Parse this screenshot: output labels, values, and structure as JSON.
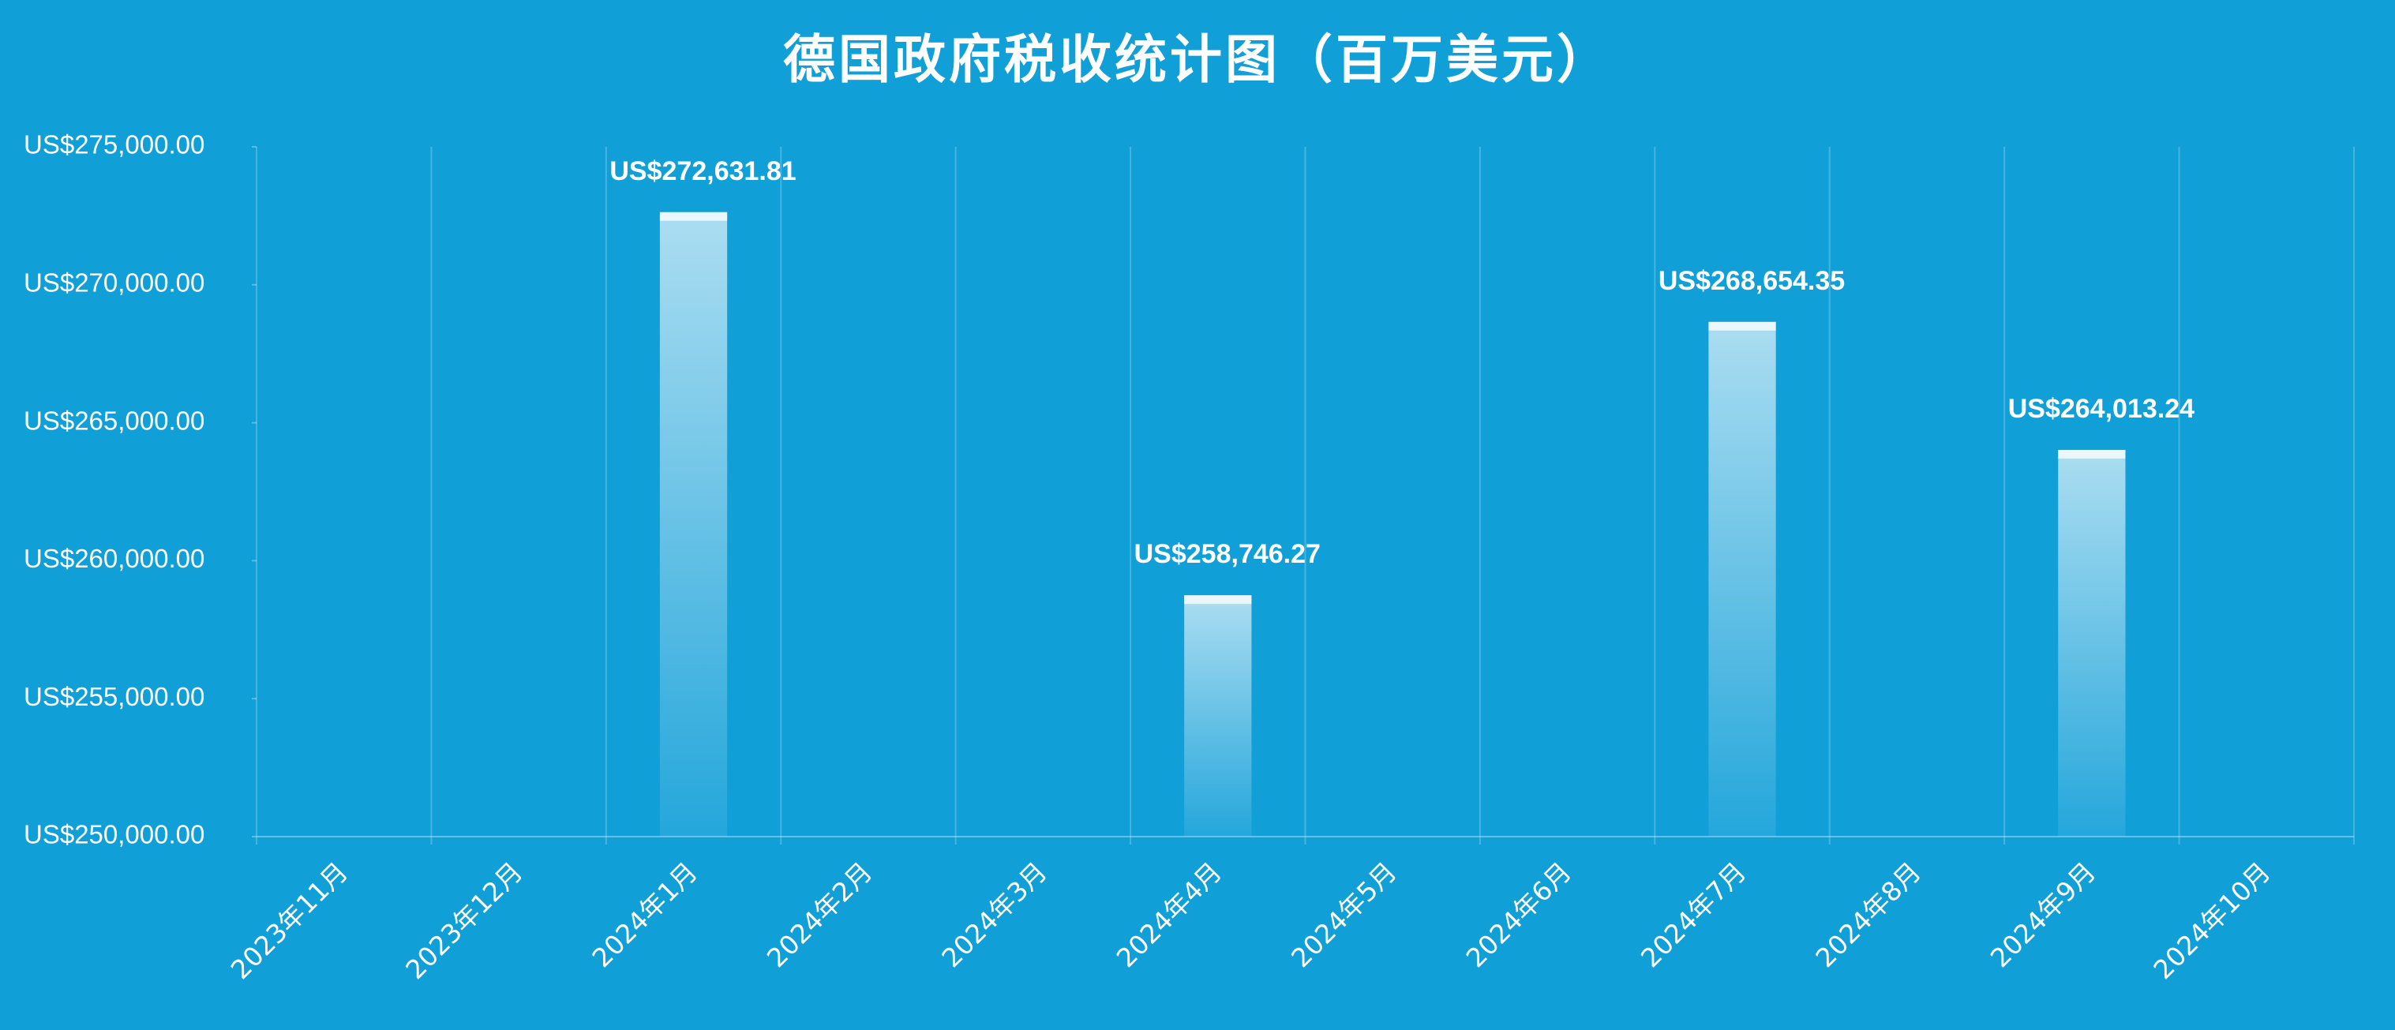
{
  "chart_data": {
    "type": "bar",
    "title": "德国政府税收统计图（百万美元）",
    "categories": [
      "2023年11月",
      "2023年12月",
      "2024年1月",
      "2024年2月",
      "2024年3月",
      "2024年4月",
      "2024年5月",
      "2024年6月",
      "2024年7月",
      "2024年8月",
      "2024年9月",
      "2024年10月"
    ],
    "values": [
      null,
      null,
      272631.81,
      null,
      null,
      258746.27,
      null,
      null,
      268654.35,
      null,
      264013.24,
      null
    ],
    "value_labels": [
      null,
      null,
      "US$272,631.81",
      null,
      null,
      "US$258,746.27",
      null,
      null,
      "US$268,654.35",
      null,
      "US$264,013.24",
      null
    ],
    "color": "#ffffff",
    "background": "#119fd8",
    "ylim": [
      250000,
      275000
    ],
    "yticks": [
      {
        "value": 250000,
        "label": "US$250,000.00"
      },
      {
        "value": 255000,
        "label": "US$255,000.00"
      },
      {
        "value": 260000,
        "label": "US$260,000.00"
      },
      {
        "value": 265000,
        "label": "US$265,000.00"
      },
      {
        "value": 270000,
        "label": "US$270,000.00"
      },
      {
        "value": 275000,
        "label": "US$275,000.00"
      }
    ],
    "grid": "x"
  }
}
